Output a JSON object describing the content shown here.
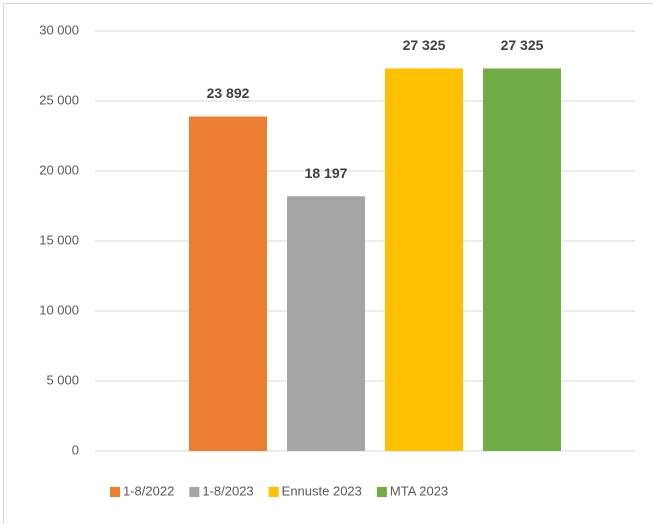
{
  "chart_data": {
    "type": "bar",
    "categories": [
      null
    ],
    "series": [
      {
        "name": "1-8/2022",
        "color": "#ed7d31",
        "values": [
          23892
        ],
        "value_labels": [
          "23 892"
        ]
      },
      {
        "name": "1-8/2023",
        "color": "#a5a5a5",
        "values": [
          18197
        ],
        "value_labels": [
          "18 197"
        ]
      },
      {
        "name": "Ennuste 2023",
        "color": "#ffc000",
        "values": [
          27325
        ],
        "value_labels": [
          "27 325"
        ]
      },
      {
        "name": "MTA 2023",
        "color": "#70ad47",
        "values": [
          27325
        ],
        "value_labels": [
          "27 325"
        ]
      }
    ],
    "ylim": [
      0,
      30000
    ],
    "yticks": [
      0,
      {
        "value": 5000,
        "label": "5 000"
      },
      {
        "value": 10000,
        "label": "10 000"
      },
      {
        "value": 15000,
        "label": "15 000"
      },
      {
        "value": 20000,
        "label": "20 000"
      },
      {
        "value": 25000,
        "label": "25 000"
      },
      {
        "value": 30000,
        "label": "30 000"
      }
    ],
    "grid": true,
    "legend": "bottom"
  }
}
